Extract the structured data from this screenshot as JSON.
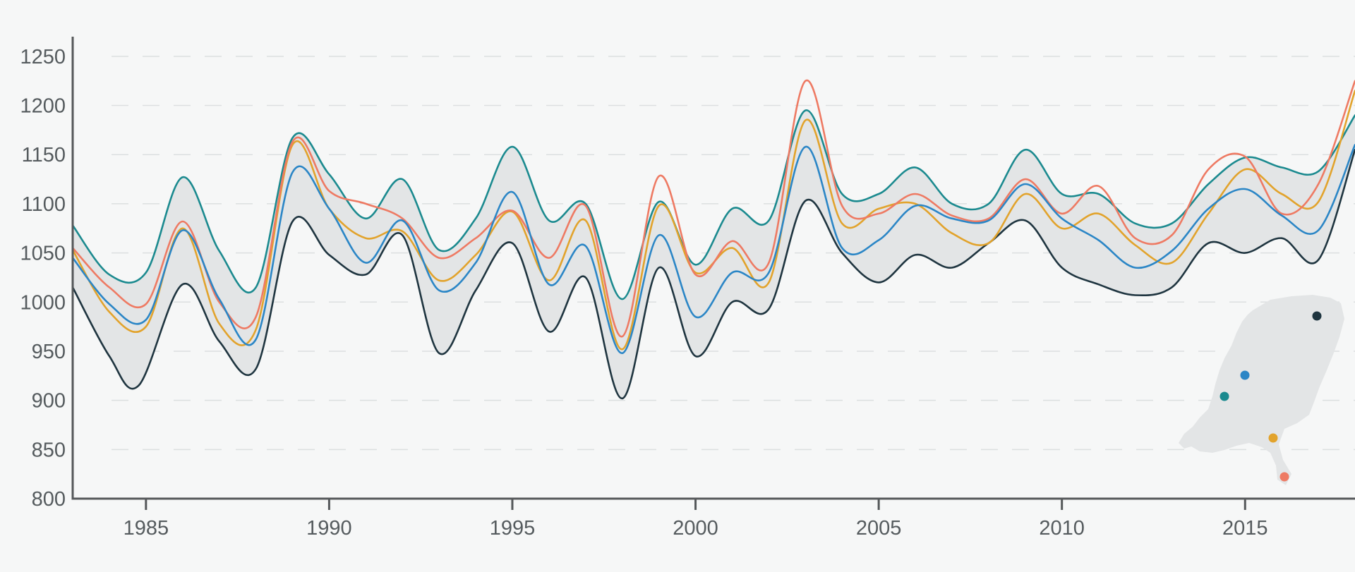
{
  "chart_data": {
    "type": "line",
    "title": "",
    "xlabel": "",
    "ylabel": "",
    "xlim": [
      1983,
      2018
    ],
    "ylim": [
      800,
      1270
    ],
    "x_ticks": [
      1985,
      1990,
      1995,
      2000,
      2005,
      2010,
      2015
    ],
    "y_ticks": [
      800,
      850,
      900,
      950,
      1000,
      1050,
      1100,
      1150,
      1200,
      1250
    ],
    "grid": "horizontal dashed",
    "band": {
      "between": [
        "s_black",
        "s_teal"
      ],
      "color": "#e3e5e6"
    },
    "series": [
      {
        "id": "s_black",
        "color": "#1f3540",
        "points": [
          [
            1983,
            1015
          ],
          [
            1984,
            945
          ],
          [
            1984.8,
            915
          ],
          [
            1986,
            1018
          ],
          [
            1987,
            960
          ],
          [
            1988,
            932
          ],
          [
            1989,
            1082
          ],
          [
            1990,
            1048
          ],
          [
            1991,
            1028
          ],
          [
            1992,
            1068
          ],
          [
            1993,
            948
          ],
          [
            1994,
            1012
          ],
          [
            1995,
            1060
          ],
          [
            1996,
            970
          ],
          [
            1997,
            1025
          ],
          [
            1998,
            902
          ],
          [
            1999,
            1035
          ],
          [
            2000,
            945
          ],
          [
            2001,
            1000
          ],
          [
            2002,
            993
          ],
          [
            2003,
            1103
          ],
          [
            2004,
            1050
          ],
          [
            2005,
            1020
          ],
          [
            2006,
            1048
          ],
          [
            2007,
            1035
          ],
          [
            2008,
            1060
          ],
          [
            2009,
            1083
          ],
          [
            2010,
            1035
          ],
          [
            2011,
            1018
          ],
          [
            2012,
            1007
          ],
          [
            2013,
            1015
          ],
          [
            2014,
            1060
          ],
          [
            2015,
            1050
          ],
          [
            2016,
            1065
          ],
          [
            2017,
            1043
          ],
          [
            2018,
            1155
          ]
        ]
      },
      {
        "id": "s_teal",
        "color": "#1b8a8f",
        "points": [
          [
            1983,
            1078
          ],
          [
            1984,
            1028
          ],
          [
            1985,
            1030
          ],
          [
            1986,
            1127
          ],
          [
            1987,
            1052
          ],
          [
            1988,
            1015
          ],
          [
            1989,
            1167
          ],
          [
            1990,
            1130
          ],
          [
            1991,
            1085
          ],
          [
            1992,
            1125
          ],
          [
            1993,
            1053
          ],
          [
            1994,
            1085
          ],
          [
            1995,
            1158
          ],
          [
            1996,
            1083
          ],
          [
            1997,
            1100
          ],
          [
            1998,
            1003
          ],
          [
            1999,
            1102
          ],
          [
            2000,
            1038
          ],
          [
            2001,
            1095
          ],
          [
            2002,
            1083
          ],
          [
            2003,
            1195
          ],
          [
            2004,
            1110
          ],
          [
            2005,
            1110
          ],
          [
            2006,
            1137
          ],
          [
            2007,
            1100
          ],
          [
            2008,
            1100
          ],
          [
            2009,
            1155
          ],
          [
            2010,
            1110
          ],
          [
            2011,
            1110
          ],
          [
            2012,
            1080
          ],
          [
            2013,
            1080
          ],
          [
            2014,
            1120
          ],
          [
            2015,
            1147
          ],
          [
            2016,
            1137
          ],
          [
            2017,
            1133
          ],
          [
            2018,
            1190
          ]
        ]
      },
      {
        "id": "s_blue",
        "color": "#2b86c6",
        "points": [
          [
            1983,
            1045
          ],
          [
            1984,
            998
          ],
          [
            1985,
            982
          ],
          [
            1986,
            1073
          ],
          [
            1987,
            1003
          ],
          [
            1988,
            962
          ],
          [
            1989,
            1132
          ],
          [
            1990,
            1095
          ],
          [
            1991,
            1040
          ],
          [
            1992,
            1083
          ],
          [
            1993,
            1012
          ],
          [
            1994,
            1040
          ],
          [
            1995,
            1112
          ],
          [
            1996,
            1018
          ],
          [
            1997,
            1057
          ],
          [
            1998,
            948
          ],
          [
            1999,
            1068
          ],
          [
            2000,
            985
          ],
          [
            2001,
            1030
          ],
          [
            2002,
            1030
          ],
          [
            2003,
            1158
          ],
          [
            2004,
            1055
          ],
          [
            2005,
            1063
          ],
          [
            2006,
            1098
          ],
          [
            2007,
            1085
          ],
          [
            2008,
            1083
          ],
          [
            2009,
            1120
          ],
          [
            2010,
            1085
          ],
          [
            2011,
            1063
          ],
          [
            2012,
            1035
          ],
          [
            2013,
            1052
          ],
          [
            2014,
            1095
          ],
          [
            2015,
            1115
          ],
          [
            2016,
            1088
          ],
          [
            2017,
            1073
          ],
          [
            2018,
            1160
          ]
        ]
      },
      {
        "id": "s_orange",
        "color": "#e2a32c",
        "points": [
          [
            1983,
            1053
          ],
          [
            1984,
            990
          ],
          [
            1985,
            975
          ],
          [
            1986,
            1075
          ],
          [
            1987,
            978
          ],
          [
            1988,
            972
          ],
          [
            1989,
            1160
          ],
          [
            1990,
            1095
          ],
          [
            1991,
            1065
          ],
          [
            1992,
            1072
          ],
          [
            1993,
            1022
          ],
          [
            1994,
            1048
          ],
          [
            1995,
            1092
          ],
          [
            1996,
            1022
          ],
          [
            1997,
            1083
          ],
          [
            1998,
            952
          ],
          [
            1999,
            1098
          ],
          [
            2000,
            1030
          ],
          [
            2001,
            1055
          ],
          [
            2002,
            1020
          ],
          [
            2003,
            1185
          ],
          [
            2004,
            1080
          ],
          [
            2005,
            1095
          ],
          [
            2006,
            1100
          ],
          [
            2007,
            1070
          ],
          [
            2008,
            1060
          ],
          [
            2009,
            1110
          ],
          [
            2010,
            1075
          ],
          [
            2011,
            1090
          ],
          [
            2012,
            1058
          ],
          [
            2013,
            1040
          ],
          [
            2014,
            1090
          ],
          [
            2015,
            1135
          ],
          [
            2016,
            1110
          ],
          [
            2017,
            1102
          ],
          [
            2018,
            1215
          ]
        ]
      },
      {
        "id": "s_coral",
        "color": "#ee7a63",
        "points": [
          [
            1983,
            1055
          ],
          [
            1984,
            1015
          ],
          [
            1985,
            998
          ],
          [
            1986,
            1082
          ],
          [
            1987,
            1000
          ],
          [
            1988,
            985
          ],
          [
            1989,
            1163
          ],
          [
            1990,
            1113
          ],
          [
            1991,
            1100
          ],
          [
            1992,
            1085
          ],
          [
            1993,
            1045
          ],
          [
            1994,
            1065
          ],
          [
            1995,
            1093
          ],
          [
            1996,
            1045
          ],
          [
            1997,
            1098
          ],
          [
            1998,
            965
          ],
          [
            1999,
            1128
          ],
          [
            2000,
            1028
          ],
          [
            2001,
            1062
          ],
          [
            2002,
            1040
          ],
          [
            2003,
            1225
          ],
          [
            2004,
            1098
          ],
          [
            2005,
            1090
          ],
          [
            2006,
            1110
          ],
          [
            2007,
            1088
          ],
          [
            2008,
            1085
          ],
          [
            2009,
            1125
          ],
          [
            2010,
            1090
          ],
          [
            2011,
            1118
          ],
          [
            2012,
            1065
          ],
          [
            2013,
            1068
          ],
          [
            2014,
            1135
          ],
          [
            2015,
            1148
          ],
          [
            2016,
            1090
          ],
          [
            2017,
            1120
          ],
          [
            2018,
            1225
          ]
        ]
      }
    ],
    "inset_map": {
      "shape": "Netherlands map",
      "fill": "#e3e5e6",
      "markers": [
        {
          "color": "#1f3540"
        },
        {
          "color": "#2b86c6"
        },
        {
          "color": "#1b8a8f"
        },
        {
          "color": "#e2a32c"
        },
        {
          "color": "#ee7a63"
        }
      ]
    }
  }
}
